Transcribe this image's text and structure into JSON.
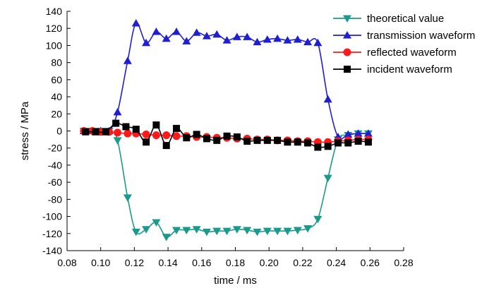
{
  "chart_data": {
    "type": "line",
    "title": "",
    "xlabel": "time / ms",
    "ylabel": "stress / MPa",
    "xlim": [
      0.08,
      0.28
    ],
    "ylim": [
      -140,
      140
    ],
    "x_ticks": [
      "0.08",
      "0.10",
      "0.12",
      "0.14",
      "0.16",
      "0.18",
      "0.20",
      "0.22",
      "0.24",
      "0.26",
      "0.28"
    ],
    "y_ticks": [
      "140",
      "120",
      "100",
      "80",
      "60",
      "40",
      "20",
      "0",
      "-20",
      "-40",
      "-60",
      "-80",
      "-100",
      "-120",
      "-140"
    ],
    "legend_position": "top-right",
    "series": [
      {
        "name": "theoretical value",
        "color": "#1a9a8c",
        "marker": "triangle-down",
        "x": [
          0.09,
          0.095,
          0.1,
          0.105,
          0.11,
          0.116,
          0.121,
          0.127,
          0.133,
          0.139,
          0.145,
          0.151,
          0.157,
          0.163,
          0.169,
          0.175,
          0.181,
          0.187,
          0.193,
          0.199,
          0.205,
          0.211,
          0.217,
          0.223,
          0.229,
          0.235,
          0.241,
          0.247,
          0.253,
          0.259
        ],
        "y": [
          0,
          0,
          0,
          0,
          -11,
          -78,
          -118,
          -115,
          -107,
          -124,
          -116,
          -116,
          -115,
          -118,
          -117,
          -117,
          -115,
          -116,
          -118,
          -117,
          -117,
          -117,
          -116,
          -114,
          -103,
          -55,
          -10,
          -5,
          -3,
          -3
        ]
      },
      {
        "name": "transmission waveform",
        "color": "#1f1fd0",
        "marker": "triangle-up",
        "x": [
          0.09,
          0.095,
          0.1,
          0.105,
          0.11,
          0.116,
          0.121,
          0.127,
          0.133,
          0.139,
          0.145,
          0.151,
          0.157,
          0.163,
          0.169,
          0.175,
          0.181,
          0.187,
          0.193,
          0.199,
          0.205,
          0.211,
          0.217,
          0.223,
          0.229,
          0.235,
          0.241,
          0.247,
          0.253,
          0.259
        ],
        "y": [
          0,
          0,
          0,
          0,
          22,
          82,
          126,
          103,
          116,
          108,
          116,
          105,
          115,
          111,
          113,
          106,
          110,
          110,
          104,
          107,
          108,
          106,
          107,
          104,
          103,
          37,
          -7,
          -4,
          -3,
          -3
        ]
      },
      {
        "name": "reflected waveform",
        "color": "#ff1a1a",
        "marker": "circle",
        "x": [
          0.09,
          0.095,
          0.1,
          0.105,
          0.11,
          0.116,
          0.121,
          0.127,
          0.133,
          0.139,
          0.145,
          0.151,
          0.157,
          0.163,
          0.169,
          0.175,
          0.181,
          0.187,
          0.193,
          0.199,
          0.205,
          0.211,
          0.217,
          0.223,
          0.229,
          0.235,
          0.241,
          0.247,
          0.253,
          0.259
        ],
        "y": [
          0,
          0,
          -1,
          -1,
          -2,
          -3,
          -3,
          -4,
          -5,
          -5,
          -6,
          -6,
          -7,
          -7,
          -8,
          -8,
          -9,
          -9,
          -10,
          -10,
          -11,
          -11,
          -12,
          -12,
          -13,
          -13,
          -12,
          -11,
          -10,
          -10
        ]
      },
      {
        "name": "incident waveform",
        "color": "#000000",
        "marker": "square",
        "x": [
          0.091,
          0.097,
          0.103,
          0.109,
          0.115,
          0.121,
          0.127,
          0.133,
          0.139,
          0.145,
          0.151,
          0.157,
          0.163,
          0.169,
          0.175,
          0.181,
          0.187,
          0.193,
          0.199,
          0.205,
          0.211,
          0.217,
          0.223,
          0.229,
          0.235,
          0.241,
          0.247,
          0.253,
          0.259
        ],
        "y": [
          -1,
          -1,
          -1,
          9,
          5,
          2,
          -13,
          7,
          -17,
          3,
          -8,
          -4,
          -9,
          -11,
          -6,
          -7,
          -12,
          -11,
          -11,
          -11,
          -13,
          -13,
          -14,
          -19,
          -18,
          -14,
          -14,
          -12,
          -13
        ]
      }
    ]
  }
}
